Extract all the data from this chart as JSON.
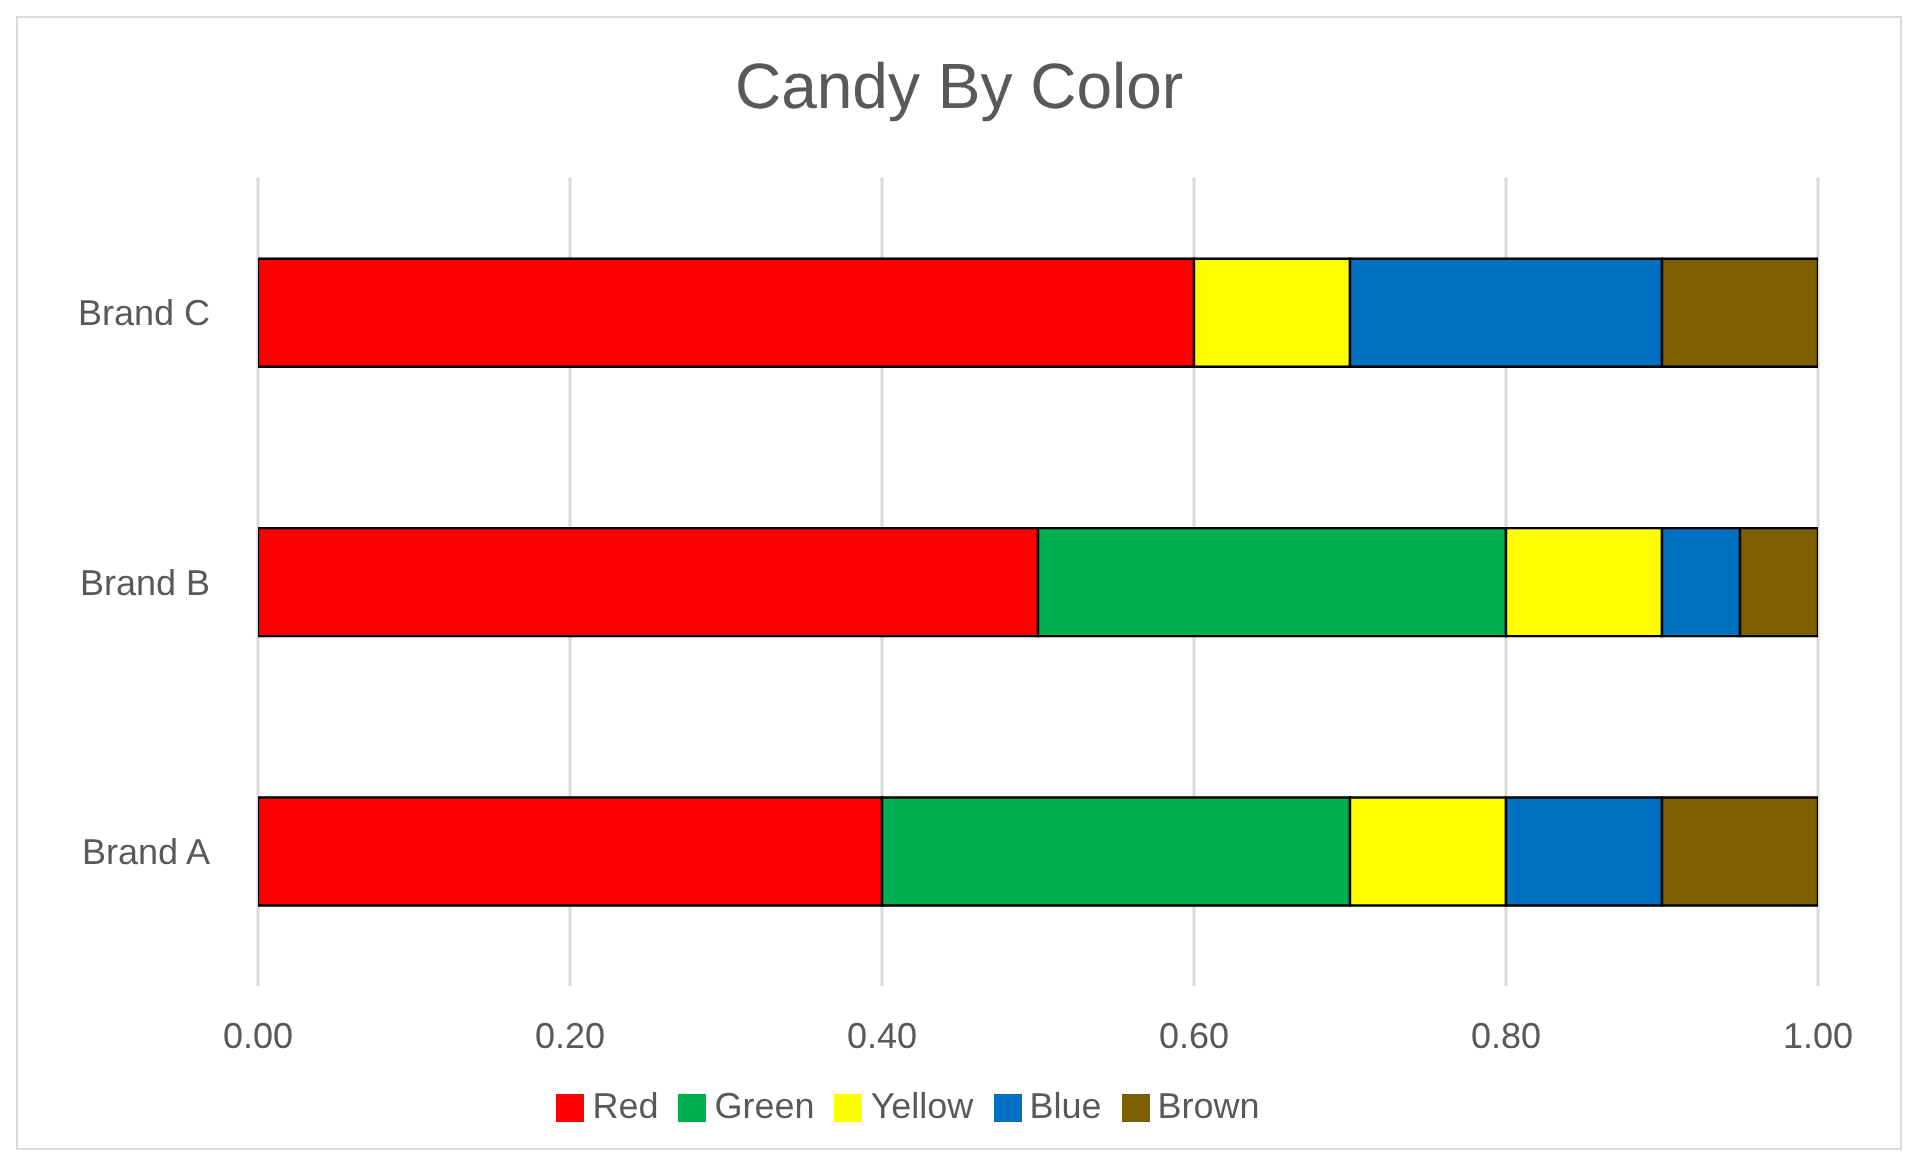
{
  "chart_data": {
    "type": "bar",
    "title": "Candy By Color",
    "orientation": "horizontal",
    "stacked": true,
    "categories": [
      "Brand C",
      "Brand B",
      "Brand A"
    ],
    "series": [
      {
        "name": "Red",
        "color": "#ff0000",
        "values": [
          0.6,
          0.5,
          0.4
        ]
      },
      {
        "name": "Green",
        "color": "#00b050",
        "values": [
          0,
          0.3,
          0.3
        ]
      },
      {
        "name": "Yellow",
        "color": "#ffff00",
        "values": [
          0.1,
          0.1,
          0.1
        ]
      },
      {
        "name": "Blue",
        "color": "#0070c0",
        "values": [
          0.2,
          0.05,
          0.1
        ]
      },
      {
        "name": "Brown",
        "color": "#7f6000",
        "values": [
          0.1,
          0.05,
          0.1
        ]
      }
    ],
    "xlim": [
      0,
      1
    ],
    "xticks": [
      {
        "value": 0,
        "label": "0.00"
      },
      {
        "value": 0.2,
        "label": "0.20"
      },
      {
        "value": 0.4,
        "label": "0.40"
      },
      {
        "value": 0.6,
        "label": "0.60"
      },
      {
        "value": 0.8,
        "label": "0.80"
      },
      {
        "value": 1,
        "label": "1.00"
      }
    ],
    "grid": "x",
    "legend": "bottom"
  }
}
